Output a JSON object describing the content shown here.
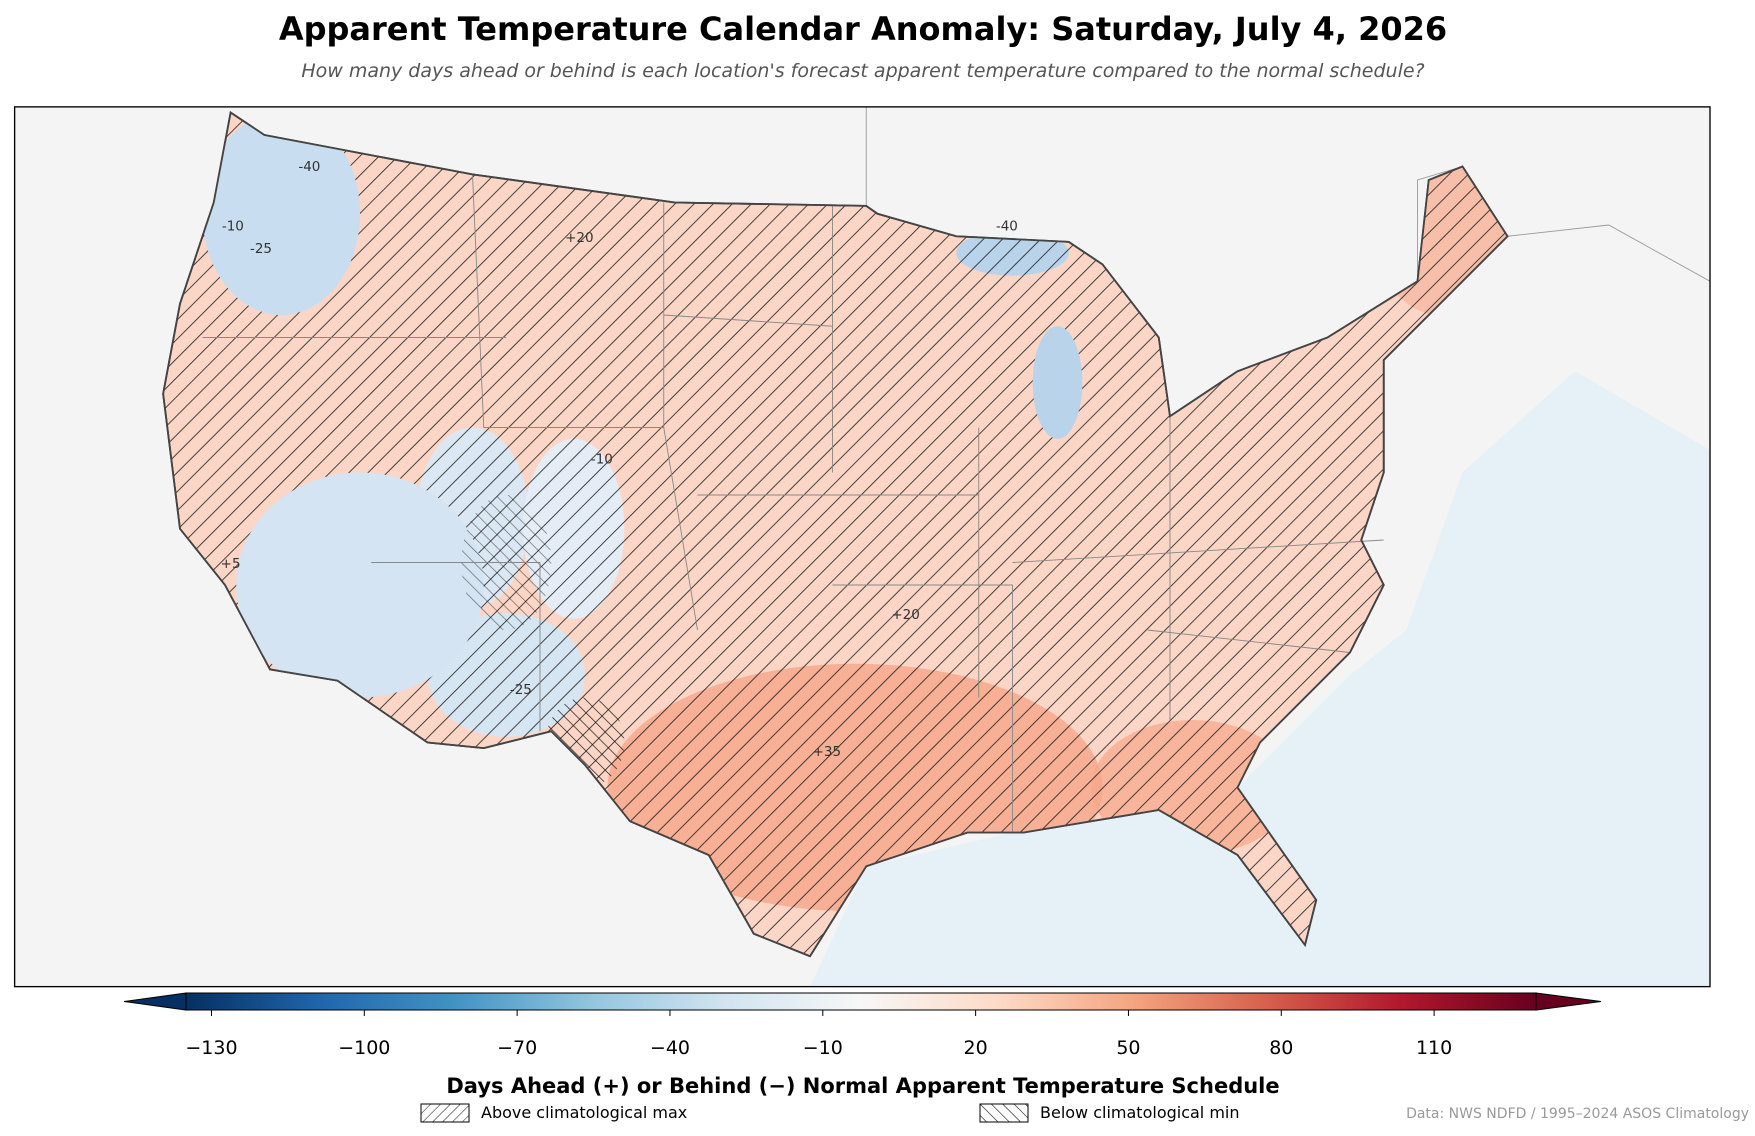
{
  "title": "Apparent Temperature Calendar Anomaly: Saturday, July 4, 2026",
  "subtitle": "How many days ahead or behind is each location's forecast apparent temperature compared to the normal schedule?",
  "map": {
    "contour_labels": [
      "+35",
      "+20",
      "-40",
      "-25",
      "-10",
      "+5",
      "-10",
      "-25",
      "+20",
      "-40"
    ]
  },
  "colorbar": {
    "label": "Days Ahead (+) or Behind (−) Normal Apparent Temperature Schedule",
    "lim": [
      -135,
      130
    ],
    "ticks": [
      {
        "value": -130,
        "label": "−130"
      },
      {
        "value": -100,
        "label": "−100"
      },
      {
        "value": -70,
        "label": "−70"
      },
      {
        "value": -40,
        "label": "−40"
      },
      {
        "value": -10,
        "label": "−10"
      },
      20,
      50,
      80,
      110
    ],
    "colors": [
      "#053061",
      "#2166ac",
      "#4393c3",
      "#92c5de",
      "#d1e5f0",
      "#f7f7f7",
      "#fddbc7",
      "#f4a582",
      "#d6604d",
      "#b2182b",
      "#67001f"
    ]
  },
  "legend": [
    {
      "label": "Above climatological max"
    },
    {
      "label": "Below climatological min"
    }
  ],
  "credit": "Data: NWS NDFD / 1995–2024 ASOS Climatology"
}
